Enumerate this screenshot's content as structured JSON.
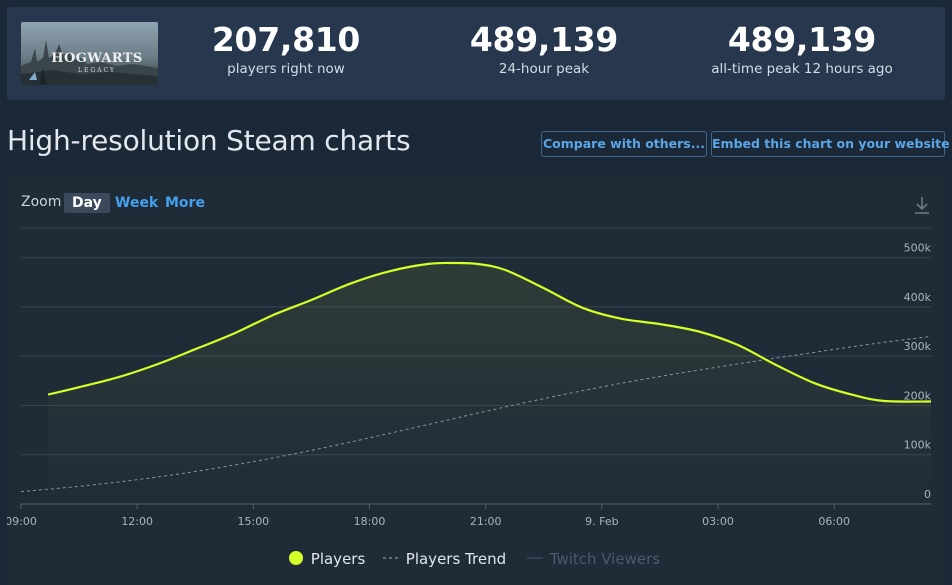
{
  "stats": [
    {
      "value": "207,810",
      "label": "players right now"
    },
    {
      "value": "489,139",
      "label": "24-hour peak"
    },
    {
      "value": "489,139",
      "label": "all-time peak 12 hours ago"
    }
  ],
  "game_logo": {
    "title": "HOGWARTS",
    "subtitle": "LEGACY"
  },
  "page_title": "High-resolution Steam charts",
  "buttons": {
    "compare": "Compare with others...",
    "embed": "Embed this chart on your website"
  },
  "zoom": {
    "label": "Zoom",
    "options": [
      "Day",
      "Week",
      "More"
    ],
    "active": "Day"
  },
  "colors": {
    "players": "#d4ff29",
    "trend": "#8893a0",
    "twitch": "#3a4c63",
    "grid": "#3a4552",
    "accent": "#44a0ec"
  },
  "chart_data": {
    "type": "line",
    "x_ticks": [
      "09:00",
      "12:00",
      "15:00",
      "18:00",
      "21:00",
      "9. Feb",
      "03:00",
      "06:00"
    ],
    "x_tick_hours": [
      9,
      12,
      15,
      18,
      21,
      24,
      27,
      30
    ],
    "x_range_hours": [
      9,
      32.5
    ],
    "ylim": [
      0,
      500000
    ],
    "y_ticks": [
      0,
      100000,
      200000,
      300000,
      400000,
      500000
    ],
    "y_tick_labels": [
      "0",
      "100k",
      "200k",
      "300k",
      "400k",
      "500k"
    ],
    "grid": true,
    "legend_position": "bottom",
    "series": [
      {
        "name": "Players",
        "x_hours": [
          9.7,
          10.5,
          11.5,
          12.5,
          13.5,
          14.5,
          15.5,
          16.5,
          17.5,
          18.5,
          19.5,
          20.2,
          20.8,
          21.5,
          22.5,
          23.5,
          24.5,
          25.5,
          26.5,
          27.5,
          28.5,
          29.5,
          30.5,
          31.3,
          32.5
        ],
        "values": [
          222000,
          237000,
          257000,
          283000,
          314000,
          346000,
          383000,
          414000,
          447000,
          472000,
          487000,
          489000,
          487000,
          475000,
          438000,
          398000,
          376000,
          365000,
          350000,
          323000,
          282000,
          245000,
          221000,
          209000,
          208000
        ]
      },
      {
        "name": "Players Trend",
        "x_hours": [
          9,
          11,
          13,
          15,
          17,
          19,
          21,
          23,
          25,
          27,
          29,
          31,
          32.5
        ],
        "values": [
          25000,
          40000,
          60000,
          86000,
          117000,
          152000,
          188000,
          222000,
          252000,
          278000,
          302000,
          325000,
          340000
        ]
      },
      {
        "name": "Twitch Viewers",
        "x_hours": [],
        "values": []
      }
    ]
  }
}
